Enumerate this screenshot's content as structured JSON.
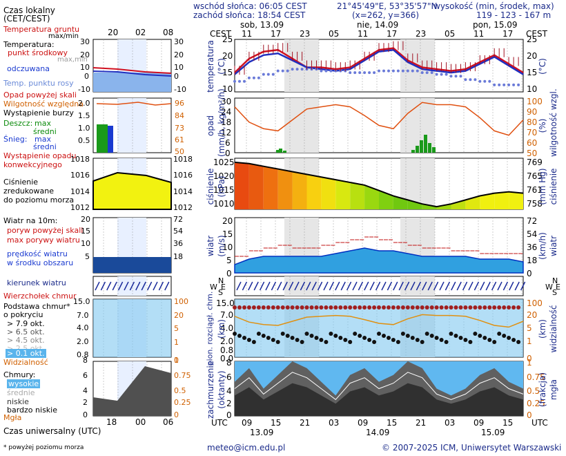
{
  "header": {
    "sunrise": "wschód słońca: 06:05 CEST",
    "sunset": "zachód słońca: 18:54 CEST",
    "coords": "21°45'49\"E, 53°35'57\"N",
    "grid": "(x=262, y=366)",
    "elev_title": "wysokość (min, środek, max)",
    "elev_values": "119 - 123 - 167 m"
  },
  "left_legend": {
    "local_time": "Czas lokalny",
    "local_time2": "(CET/CEST)",
    "soil_temp": "Temperatura gruntu",
    "soil_temp2": "max/min",
    "temp": "Temperatura:",
    "temp_mid": "punkt środkowy",
    "temp_maxmin": "max,min",
    "feels": "odczuwana",
    "dew": "Temp. punktu rosy",
    "precip_above": "Opad powyżej skali",
    "humidity": "Wilgotność względna",
    "storm": "Wystąpienie burzy",
    "rain": "Deszcz:",
    "rain_max": "max",
    "rain_avg": "średni",
    "snow": "Śnieg:",
    "snow_max": "max",
    "snow_avg": "średni",
    "conv": "Wystąpienie opadu",
    "conv2": "konwekcyjnego",
    "pressure": "Ciśnienie",
    "pressure2": "zredukowane",
    "pressure3": "do poziomu morza",
    "wind": "Wiatr na 10m:",
    "gust_above": "poryw powyżej skali",
    "gust_max": "max porywy wiatru",
    "wind_speed": "prędkość wiatru",
    "wind_speed2": "w środku obszaru",
    "wind_dir": "kierunek wiatru",
    "cloud_top": "Wierzchołek chmur",
    "cloud_base": "Podstawa chmur*",
    "cloud_base2": "o pokryciu",
    "okt79": "> 7.9 okt.",
    "okt65": "> 6.5 okt.",
    "okt45": "> 4.5 okt.",
    "okt25": "> 2.5 okt.",
    "okt01": "> 0.1 okt.",
    "visibility": "Widzialność",
    "clouds": "Chmury:",
    "high": "wysokie",
    "mid": "średnie",
    "low": "niskie",
    "vlow": "bardzo niskie",
    "fog": "Mgła",
    "utc": "Czas uniwersalny (UTC)",
    "footnote": "* powyżej poziomu morza"
  },
  "left_axis": {
    "local_hours": [
      "20",
      "02",
      "08"
    ],
    "utc_hours": [
      "18",
      "00",
      "06"
    ],
    "temp_ticks": [
      "30",
      "20",
      "10",
      "0",
      "-10"
    ],
    "temp_ticks_r": [
      "30",
      "20",
      "10",
      "0",
      "-10"
    ],
    "precip_ticks": [
      "2.0",
      "1.5",
      "1.0",
      "0.5"
    ],
    "hum_ticks": [
      "96",
      "84",
      "73",
      "61",
      "50"
    ],
    "pres_ticks": [
      "1018",
      "1016",
      "1014",
      "1012"
    ],
    "pres_ticks_r": [
      "1018",
      "1016",
      "1014",
      "1012"
    ],
    "wind_ticks": [
      "20",
      "15",
      "10",
      "5"
    ],
    "wind_ticks_r": [
      "72",
      "54",
      "36",
      "18"
    ],
    "cb_ticks": [
      "15.0",
      "7.0",
      "4.0",
      "2.0",
      "0.8"
    ],
    "vis_ticks": [
      "100",
      "20",
      "5",
      "1",
      "0"
    ],
    "cl_ticks": [
      "8",
      "6",
      "4",
      "2",
      "0"
    ],
    "cl_ticks_r": [
      "1",
      "0.75",
      "0.5",
      "0.25",
      "0"
    ]
  },
  "main_axis": {
    "cest": "CEST",
    "days_top": [
      "sob, 13.09",
      "nie, 14.09",
      "pon, 15.09"
    ],
    "hours_top": [
      "11",
      "17",
      "23",
      "05",
      "11",
      "17",
      "23",
      "05",
      "11",
      "17"
    ],
    "utc": "UTC",
    "hours_bottom": [
      "09",
      "15",
      "21",
      "03",
      "09",
      "15",
      "21",
      "03",
      "09",
      "15"
    ],
    "days_bottom": [
      "13.09",
      "14.09",
      "15.09"
    ],
    "temp_ticks": [
      "25",
      "20",
      "15",
      "10"
    ],
    "temp_label": "temperatura",
    "temp_unit": "(°C)",
    "precip_ticks": [
      "30",
      "24",
      "18",
      "12",
      "6",
      "0"
    ],
    "precip_label": "opad",
    "precip_unit": "(mm/h, kg/m²/h)",
    "hum_ticks": [
      "100",
      "90",
      "80",
      "70",
      "60",
      "50"
    ],
    "hum_label": "wilgotność wzgl.",
    "hum_unit": "(%)",
    "pres_ticks": [
      "1025",
      "1020",
      "1015",
      "1010"
    ],
    "pres_ticks_r": [
      "769",
      "765",
      "761",
      "758"
    ],
    "pres_label": "ciśnienie",
    "pres_unit": "(hPa)",
    "pres_unit_r": "(mm Hg)",
    "wind_ticks": [
      "20",
      "15",
      "10",
      "5",
      "0"
    ],
    "wind_ticks_r": [
      "72",
      "54",
      "36",
      "18",
      "0"
    ],
    "wind_label": "wiatr",
    "wind_unit": "(m/s)",
    "wind_unit_r": "(km/h)",
    "compass_n": "N",
    "compass_w": "W",
    "compass_e": "E",
    "compass_s": "S",
    "cb_ticks": [
      "15.0",
      "7.0",
      "4.0",
      "2.0",
      "0.8",
      "0.0"
    ],
    "cb_label": "pion. rozciągł. chm.",
    "cb_unit": "(km)",
    "vis_ticks": [
      "100",
      "20",
      "5",
      "1",
      "0"
    ],
    "vis_label": "widzialność",
    "vis_unit": "(km)",
    "cl_ticks": [
      "8",
      "6",
      "4",
      "2",
      "0"
    ],
    "cl_ticks_r": [
      "1",
      "0.75",
      "0.5",
      "0.25",
      "0"
    ],
    "cl_label": "zachmurzenie",
    "cl_unit": "(oktanty)",
    "fog_label": "mgła",
    "fog_unit": "(frakcja)"
  },
  "footer": {
    "email": "meteo@icm.edu.pl",
    "copyright": "© 2007-2025 ICM, Uniwersytet Warszawski"
  },
  "chart_data": [
    {
      "type": "line",
      "title": "temperatura",
      "x_utc": [
        "13.09 06",
        "13.09 09",
        "13.09 12",
        "13.09 15",
        "13.09 18",
        "13.09 21",
        "14.09 00",
        "14.09 03",
        "14.09 06",
        "14.09 09",
        "14.09 12",
        "14.09 15",
        "14.09 18",
        "14.09 21",
        "15.09 00",
        "15.09 03",
        "15.09 06",
        "15.09 09",
        "15.09 12",
        "15.09 15",
        "15.09 18"
      ],
      "series": [
        {
          "name": "punkt środkowy",
          "values": [
            15.5,
            19.5,
            21.5,
            22.0,
            19.5,
            17.0,
            17.0,
            16.5,
            17.0,
            19.5,
            22.0,
            22.5,
            19.0,
            17.0,
            16.5,
            16.0,
            16.5,
            18.5,
            20.5,
            18.0,
            15.5
          ]
        },
        {
          "name": "odczuwana",
          "values": [
            15,
            18.5,
            20.5,
            21.0,
            19,
            17,
            16.5,
            16,
            16.5,
            19,
            21.5,
            22,
            18.5,
            16.5,
            16,
            15.5,
            16,
            18,
            20,
            17.5,
            15
          ]
        },
        {
          "name": "Temp. punktu rosy",
          "values": [
            13,
            14,
            15,
            16,
            16.5,
            16.5,
            16,
            16,
            15.5,
            15.5,
            16,
            16,
            16,
            15.5,
            15,
            14.5,
            13.5,
            13,
            12,
            12,
            12.5
          ]
        }
      ],
      "ylim": [
        10,
        25
      ]
    },
    {
      "type": "line",
      "title": "wilgotność wzgl.",
      "series": [
        {
          "name": "Wilgotność względna",
          "values": [
            92,
            78,
            72,
            70,
            80,
            90,
            92,
            94,
            92,
            84,
            75,
            72,
            86,
            96,
            94,
            94,
            92,
            82,
            70,
            66,
            80
          ]
        }
      ],
      "ylim": [
        50,
        100
      ]
    },
    {
      "type": "area",
      "title": "ciśnienie",
      "series": [
        {
          "name": "Ciśnienie",
          "values": [
            1024.5,
            1024,
            1023,
            1022,
            1021,
            1020,
            1019,
            1018,
            1017,
            1016,
            1014,
            1012,
            1010.5,
            1009,
            1008,
            1009,
            1010.5,
            1012,
            1013,
            1013.5,
            1013
          ]
        }
      ],
      "ylim": [
        1007,
        1026
      ]
    },
    {
      "type": "area",
      "title": "wiatr",
      "series": [
        {
          "name": "prędkość wiatru",
          "values": [
            1.5,
            2.5,
            3,
            3,
            3,
            3,
            3,
            3.5,
            4,
            4.5,
            4,
            4,
            3.5,
            3,
            3,
            3,
            3,
            2.5,
            2.5,
            2.5,
            2
          ]
        },
        {
          "name": "max porywy wiatru",
          "values": [
            6,
            8,
            9,
            10,
            9,
            9,
            10,
            11,
            12,
            13,
            12,
            11,
            10,
            9,
            9,
            8,
            8,
            7,
            7,
            7,
            6
          ]
        }
      ],
      "ylim": [
        0,
        20
      ]
    },
    {
      "type": "area",
      "title": "zachmurzenie",
      "series": [
        {
          "name": "Chmury",
          "values": [
            5,
            7,
            4,
            6,
            8,
            7,
            5,
            3,
            6,
            7,
            5,
            6,
            8,
            7,
            4,
            3,
            4,
            6,
            7,
            5,
            4
          ]
        }
      ],
      "ylim": [
        0,
        8
      ]
    }
  ]
}
